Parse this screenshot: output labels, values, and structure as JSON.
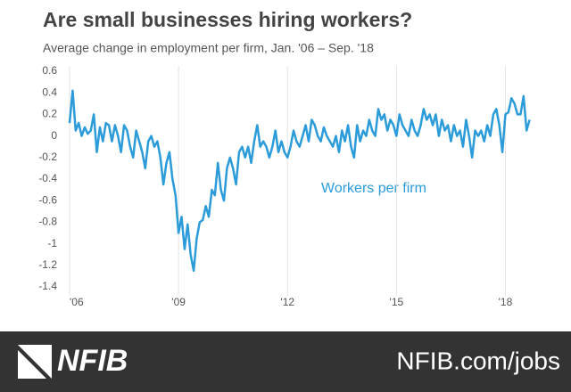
{
  "chart_data": {
    "type": "line",
    "title": "Are small businesses hiring workers?",
    "subtitle": "Average change in employment per firm, Jan. '06 – Sep. '18",
    "annotation": "Workers per firm",
    "x": [
      2006,
      2006.083,
      2006.167,
      2006.25,
      2006.333,
      2006.417,
      2006.5,
      2006.583,
      2006.667,
      2006.75,
      2006.833,
      2006.917,
      2007,
      2007.083,
      2007.167,
      2007.25,
      2007.333,
      2007.417,
      2007.5,
      2007.583,
      2007.667,
      2007.75,
      2007.833,
      2007.917,
      2008,
      2008.083,
      2008.167,
      2008.25,
      2008.333,
      2008.417,
      2008.5,
      2008.583,
      2008.667,
      2008.75,
      2008.833,
      2008.917,
      2009,
      2009.083,
      2009.167,
      2009.25,
      2009.333,
      2009.417,
      2009.5,
      2009.583,
      2009.667,
      2009.75,
      2009.833,
      2009.917,
      2010,
      2010.083,
      2010.167,
      2010.25,
      2010.333,
      2010.417,
      2010.5,
      2010.583,
      2010.667,
      2010.75,
      2010.833,
      2010.917,
      2011,
      2011.083,
      2011.167,
      2011.25,
      2011.333,
      2011.417,
      2011.5,
      2011.583,
      2011.667,
      2011.75,
      2011.833,
      2011.917,
      2012,
      2012.083,
      2012.167,
      2012.25,
      2012.333,
      2012.417,
      2012.5,
      2012.583,
      2012.667,
      2012.75,
      2012.833,
      2012.917,
      2013,
      2013.083,
      2013.167,
      2013.25,
      2013.333,
      2013.417,
      2013.5,
      2013.583,
      2013.667,
      2013.75,
      2013.833,
      2013.917,
      2014,
      2014.083,
      2014.167,
      2014.25,
      2014.333,
      2014.417,
      2014.5,
      2014.583,
      2014.667,
      2014.75,
      2014.833,
      2014.917,
      2015,
      2015.083,
      2015.167,
      2015.25,
      2015.333,
      2015.417,
      2015.5,
      2015.583,
      2015.667,
      2015.75,
      2015.833,
      2015.917,
      2016,
      2016.083,
      2016.167,
      2016.25,
      2016.333,
      2016.417,
      2016.5,
      2016.583,
      2016.667,
      2016.75,
      2016.833,
      2016.917,
      2017,
      2017.083,
      2017.167,
      2017.25,
      2017.333,
      2017.417,
      2017.5,
      2017.583,
      2017.667,
      2017.75,
      2017.833,
      2017.917,
      2018,
      2018.083,
      2018.167,
      2018.25,
      2018.333,
      2018.417,
      2018.5,
      2018.583,
      2018.667
    ],
    "series": [
      {
        "name": "Workers per firm",
        "color": "#2b9bd9",
        "values": [
          0.12,
          0.42,
          0.05,
          0.12,
          0.0,
          0.08,
          0.02,
          0.05,
          0.2,
          -0.15,
          0.08,
          -0.05,
          0.12,
          0.1,
          -0.05,
          0.1,
          0.0,
          -0.15,
          0.1,
          0.05,
          -0.1,
          -0.2,
          0.05,
          -0.05,
          -0.15,
          -0.3,
          -0.05,
          0.0,
          -0.1,
          -0.05,
          -0.2,
          -0.45,
          -0.25,
          -0.15,
          -0.4,
          -0.55,
          -0.9,
          -0.75,
          -1.05,
          -0.82,
          -1.1,
          -1.25,
          -0.95,
          -0.8,
          -0.78,
          -0.65,
          -0.75,
          -0.5,
          -0.55,
          -0.25,
          -0.5,
          -0.6,
          -0.3,
          -0.2,
          -0.3,
          -0.45,
          -0.15,
          -0.1,
          -0.2,
          -0.1,
          -0.25,
          -0.05,
          0.1,
          -0.1,
          -0.05,
          -0.1,
          -0.2,
          -0.1,
          0.05,
          -0.15,
          -0.05,
          -0.15,
          -0.2,
          -0.1,
          0.05,
          -0.05,
          -0.1,
          0.0,
          0.1,
          -0.05,
          0.15,
          0.1,
          0.0,
          -0.05,
          0.08,
          0.0,
          -0.05,
          -0.1,
          0.0,
          -0.15,
          0.05,
          -0.05,
          0.1,
          -0.1,
          -0.2,
          0.1,
          -0.05,
          0.05,
          0.0,
          0.15,
          0.05,
          0.0,
          0.25,
          0.15,
          0.2,
          0.05,
          0.15,
          0.1,
          0.0,
          0.2,
          0.1,
          0.05,
          0.0,
          0.15,
          0.05,
          0.0,
          0.1,
          0.25,
          0.15,
          0.2,
          0.1,
          0.2,
          0.0,
          0.15,
          0.05,
          0.1,
          -0.05,
          0.1,
          0.0,
          0.05,
          -0.1,
          0.15,
          0.0,
          -0.2,
          0.05,
          0.0,
          0.05,
          -0.05,
          0.1,
          0.0,
          0.2,
          0.25,
          0.1,
          -0.15,
          0.2,
          0.22,
          0.35,
          0.3,
          0.2,
          0.2,
          0.37,
          0.05,
          0.15
        ]
      }
    ],
    "xlim": [
      2006,
      2018.75
    ],
    "xticks": [
      {
        "value": 2006,
        "label": "'06"
      },
      {
        "value": 2009,
        "label": "'09"
      },
      {
        "value": 2012,
        "label": "'12"
      },
      {
        "value": 2015,
        "label": "'15"
      },
      {
        "value": 2018,
        "label": "'18"
      }
    ],
    "ylim": [
      -1.4,
      0.6
    ],
    "yticks": [
      0.6,
      0.4,
      0.2,
      0,
      -0.2,
      -0.4,
      -0.6,
      -0.8,
      -1,
      -1.2,
      -1.4
    ],
    "grid": "x"
  },
  "footer": {
    "logo": "NFIB",
    "link": "NFIB.com/jobs"
  }
}
